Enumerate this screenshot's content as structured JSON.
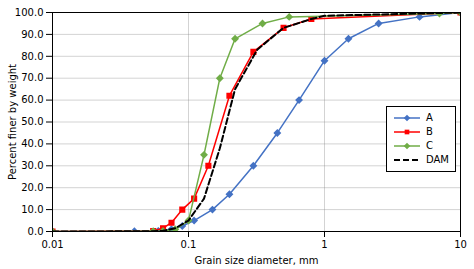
{
  "chart_data": {
    "type": "line",
    "xlabel": "Grain size diameter, mm",
    "ylabel": "Percent finer by weight",
    "log": "x",
    "grid": true,
    "legend": "right",
    "xlim": [
      0.01,
      10
    ],
    "xticks": [
      0.01,
      0.1,
      1,
      10
    ],
    "ylim": [
      0,
      100
    ],
    "yticks": [
      {
        "value": 0,
        "label": "0.0"
      },
      {
        "value": 10,
        "label": "10.0"
      },
      {
        "value": 20,
        "label": "20.0"
      },
      {
        "value": 30,
        "label": "30.0"
      },
      {
        "value": 40,
        "label": "40.0"
      },
      {
        "value": 50,
        "label": "50.0"
      },
      {
        "value": 60,
        "label": "60.0"
      },
      {
        "value": 70,
        "label": "70.0"
      },
      {
        "value": 80,
        "label": "80.0"
      },
      {
        "value": 90,
        "label": "90.0"
      },
      {
        "value": 100,
        "label": "100.0"
      }
    ],
    "series": [
      {
        "name": "A",
        "color": "#4472C4",
        "marker": "diamond",
        "line_style": "solid",
        "x": [
          0.01,
          0.04,
          0.06,
          0.075,
          0.09,
          0.11,
          0.15,
          0.2,
          0.3,
          0.45,
          0.65,
          1.0,
          1.5,
          2.5,
          5.0,
          10.0
        ],
        "values": [
          0.0,
          0.1,
          0.3,
          1.0,
          2.5,
          5.0,
          10.0,
          17.0,
          30.0,
          45.0,
          60.0,
          78.0,
          88.0,
          95.0,
          98.0,
          100.0
        ]
      },
      {
        "name": "B",
        "color": "#FF0000",
        "marker": "square",
        "line_style": "solid",
        "x": [
          0.01,
          0.055,
          0.065,
          0.075,
          0.09,
          0.11,
          0.14,
          0.2,
          0.3,
          0.5,
          0.8,
          10.0
        ],
        "values": [
          0.0,
          0.2,
          1.5,
          4.0,
          10.0,
          15.0,
          30.0,
          62.0,
          82.0,
          93.0,
          97.0,
          100.0
        ]
      },
      {
        "name": "C",
        "color": "#70AD47",
        "marker": "diamond",
        "line_style": "solid",
        "x": [
          0.01,
          0.055,
          0.065,
          0.08,
          0.1,
          0.13,
          0.17,
          0.22,
          0.35,
          0.55,
          7.0,
          10.0
        ],
        "values": [
          0.0,
          0.1,
          0.2,
          1.0,
          5.0,
          35.0,
          70.0,
          88.0,
          95.0,
          98.0,
          99.5,
          100.0
        ]
      },
      {
        "name": "DAM",
        "color": "#000000",
        "marker": "none",
        "line_style": "dashed",
        "x": [
          0.01,
          0.05,
          0.065,
          0.08,
          0.1,
          0.13,
          0.17,
          0.22,
          0.32,
          0.5,
          0.8,
          1.0,
          10.0
        ],
        "values": [
          0.0,
          0.1,
          0.3,
          1.5,
          5.0,
          15.0,
          38.0,
          65.0,
          83.0,
          93.0,
          97.0,
          98.5,
          100.0
        ]
      }
    ]
  }
}
